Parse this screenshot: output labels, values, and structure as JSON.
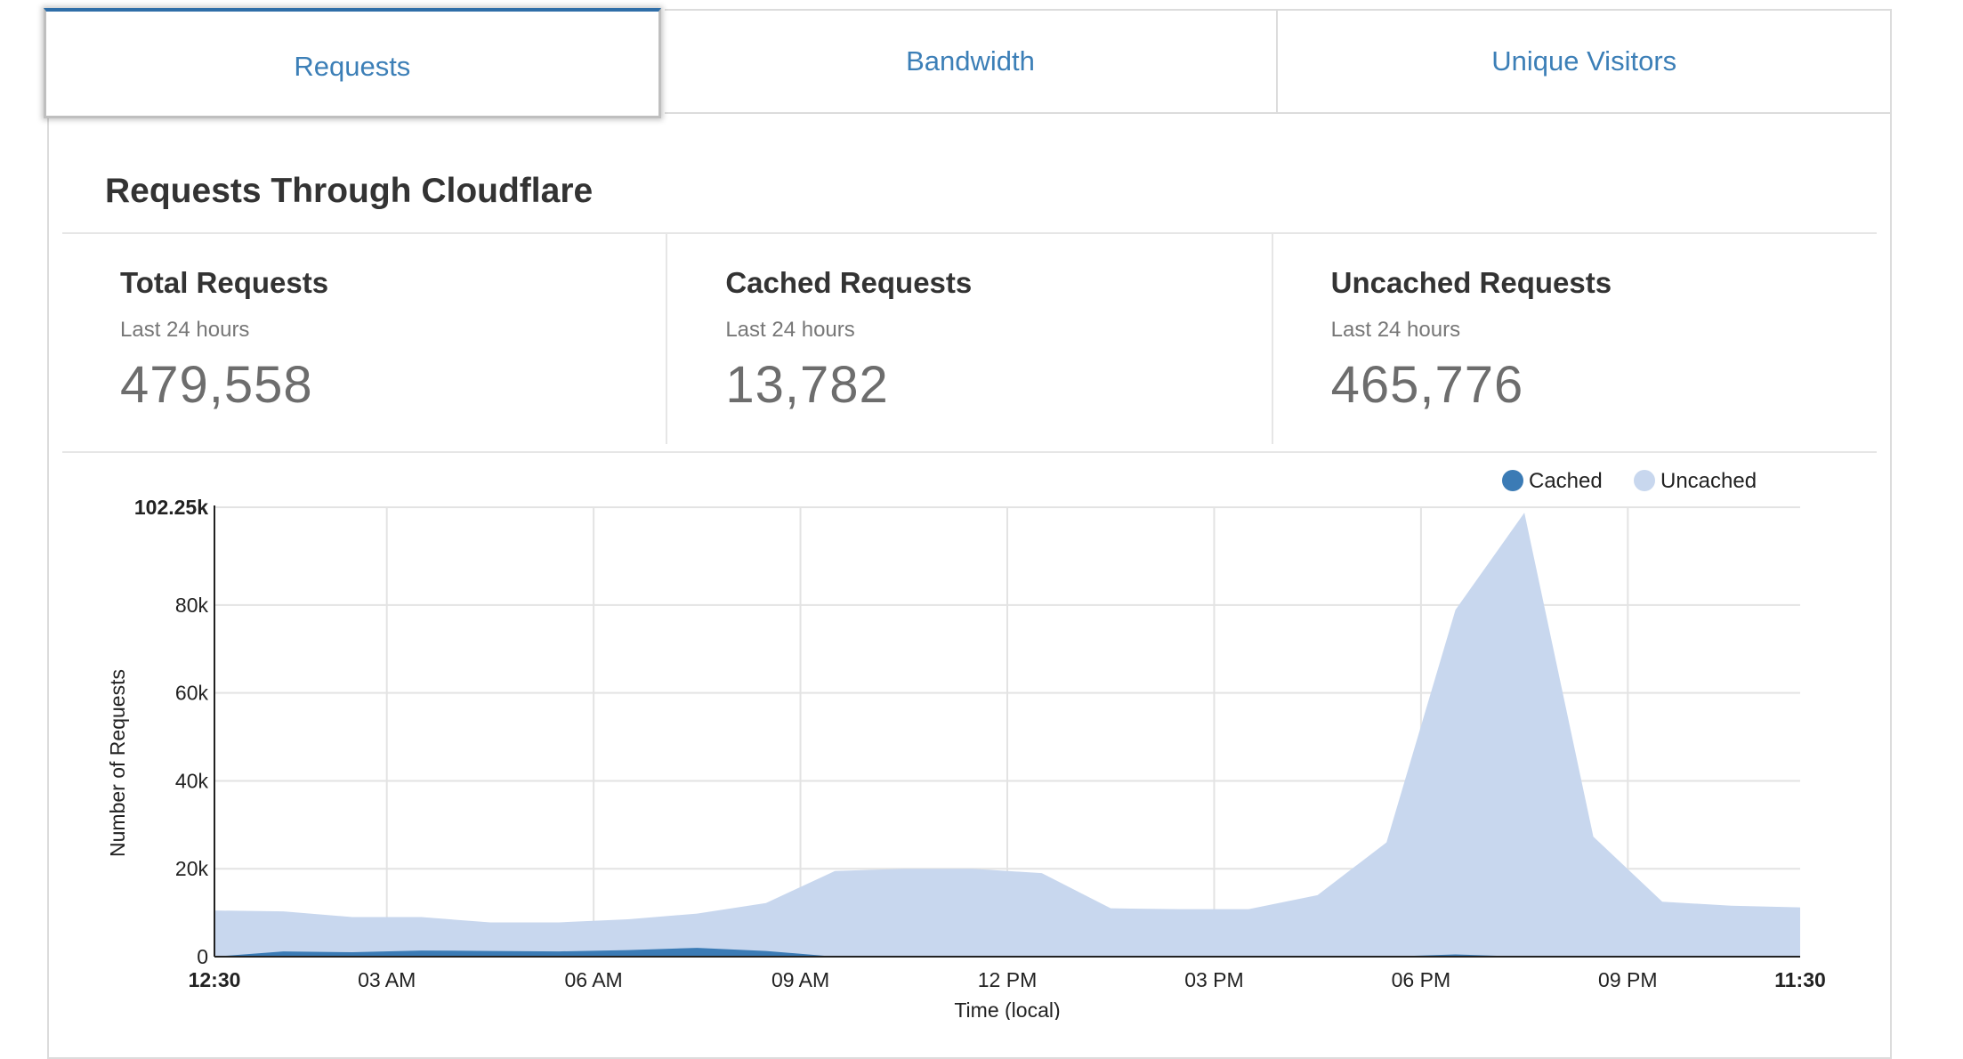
{
  "tabs": [
    {
      "label": "Requests",
      "active": true
    },
    {
      "label": "Bandwidth",
      "active": false
    },
    {
      "label": "Unique Visitors",
      "active": false
    }
  ],
  "section_title": "Requests Through Cloudflare",
  "stats": [
    {
      "title": "Total Requests",
      "subtitle": "Last 24 hours",
      "value": "479,558"
    },
    {
      "title": "Cached Requests",
      "subtitle": "Last 24 hours",
      "value": "13,782"
    },
    {
      "title": "Uncached Requests",
      "subtitle": "Last 24 hours",
      "value": "465,776"
    }
  ],
  "colors": {
    "accent": "#3c7fb7",
    "cached": "#3b7bb5",
    "uncached": "#c8d7ee"
  },
  "chart_data": {
    "type": "area",
    "stacked": true,
    "xlabel": "Time (local)",
    "ylabel": "Number of Requests",
    "ylim": [
      0,
      102250
    ],
    "y_ticks": [
      {
        "value": 0,
        "label": "0"
      },
      {
        "value": 20000,
        "label": "20k"
      },
      {
        "value": 40000,
        "label": "40k"
      },
      {
        "value": 60000,
        "label": "60k"
      },
      {
        "value": 80000,
        "label": "80k"
      },
      {
        "value": 102250,
        "label": "102.25k",
        "bold": true
      }
    ],
    "x_range": [
      "12:30",
      "11:30"
    ],
    "x_ticks": [
      "12:30",
      "03 AM",
      "06 AM",
      "09 AM",
      "12 PM",
      "03 PM",
      "06 PM",
      "09 PM",
      "11:30"
    ],
    "x": [
      "12:30 AM",
      "01:30 AM",
      "02:30 AM",
      "03:30 AM",
      "04:30 AM",
      "05:30 AM",
      "06:30 AM",
      "07:30 AM",
      "08:30 AM",
      "09:30 AM",
      "10:30 AM",
      "11:30 AM",
      "12:30 PM",
      "01:30 PM",
      "02:30 PM",
      "03:30 PM",
      "04:30 PM",
      "05:30 PM",
      "06:30 PM",
      "07:30 PM",
      "08:30 PM",
      "09:30 PM",
      "10:30 PM",
      "11:30 PM"
    ],
    "legend_position": "top-right",
    "series": [
      {
        "name": "Cached",
        "color": "#3b7bb5",
        "values": [
          0,
          1200,
          1000,
          1400,
          1300,
          1200,
          1500,
          2000,
          1300,
          0,
          0,
          0,
          0,
          0,
          0,
          0,
          0,
          0,
          500,
          0,
          0,
          0,
          0,
          0
        ]
      },
      {
        "name": "Uncached",
        "color": "#c8d7ee",
        "values": [
          10500,
          9100,
          8000,
          7600,
          6500,
          6600,
          7000,
          7800,
          10900,
          19500,
          20000,
          20000,
          19000,
          11000,
          10800,
          10800,
          14000,
          26000,
          78400,
          101000,
          27300,
          12500,
          11600,
          11200
        ]
      }
    ]
  }
}
